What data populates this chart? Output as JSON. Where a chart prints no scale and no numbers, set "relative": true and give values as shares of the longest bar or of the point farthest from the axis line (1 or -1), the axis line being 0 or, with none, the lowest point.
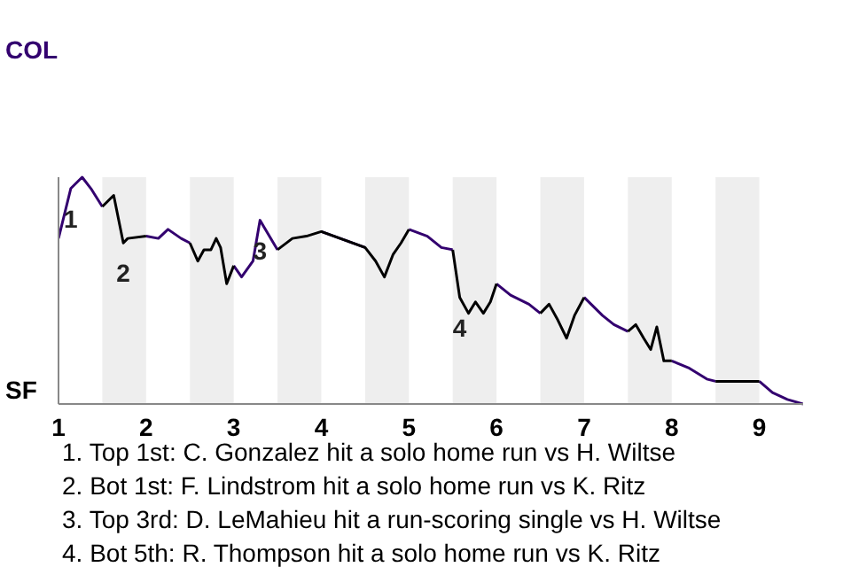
{
  "chart_data": {
    "type": "line",
    "relative": true,
    "xlim": [
      1,
      9.5
    ],
    "xticks": [
      1,
      2,
      3,
      4,
      5,
      6,
      7,
      8,
      9
    ],
    "marker": "none",
    "line_style": "solid",
    "x": [
      1,
      1.14,
      1.27,
      1.37,
      1.5,
      1.63,
      1.74,
      1.79,
      2,
      2.14,
      2.25,
      2.4,
      2.5,
      2.59,
      2.66,
      2.74,
      2.8,
      2.85,
      2.92,
      3,
      3.09,
      3.22,
      3.3,
      3.5,
      3.67,
      3.83,
      4,
      4.5,
      4.62,
      4.72,
      4.82,
      4.91,
      5,
      5.21,
      5.37,
      5.5,
      5.58,
      5.68,
      5.76,
      5.85,
      5.93,
      6,
      6.16,
      6.37,
      6.5,
      6.6,
      6.7,
      6.8,
      6.89,
      7,
      7.21,
      7.34,
      7.5,
      7.59,
      7.68,
      7.76,
      7.83,
      7.91,
      8,
      8.19,
      8.4,
      8.5,
      8.72,
      9,
      9.15,
      9.32,
      9.5
    ],
    "series": [
      {
        "color": "#33006f",
        "values": [
          0.73,
          0.95,
          1,
          0.95,
          0.87,
          null,
          null,
          null,
          0.74,
          0.73,
          0.77,
          0.73,
          0.71,
          null,
          null,
          null,
          null,
          null,
          null,
          0.61,
          0.56,
          0.63,
          0.81,
          0.68,
          null,
          null,
          0.76,
          0.69,
          null,
          null,
          null,
          null,
          0.77,
          0.74,
          0.69,
          0.68,
          null,
          null,
          null,
          null,
          null,
          0.53,
          0.48,
          0.44,
          0.4,
          null,
          null,
          null,
          null,
          0.47,
          0.39,
          0.35,
          0.32,
          null,
          null,
          null,
          null,
          null,
          0.19,
          0.16,
          0.11,
          0.1,
          null,
          0.1,
          0.05,
          0.02,
          0
        ]
      },
      {
        "color": "#000000",
        "values": [
          null,
          null,
          null,
          null,
          0.87,
          0.92,
          0.71,
          0.73,
          0.74,
          null,
          null,
          null,
          0.71,
          0.63,
          0.68,
          0.68,
          0.73,
          0.69,
          0.53,
          0.61,
          null,
          null,
          null,
          0.68,
          0.73,
          0.74,
          0.76,
          0.69,
          0.63,
          0.56,
          0.66,
          0.71,
          0.77,
          null,
          null,
          0.68,
          0.47,
          0.4,
          0.45,
          0.4,
          0.45,
          0.53,
          null,
          null,
          0.4,
          0.44,
          0.37,
          0.29,
          0.39,
          0.47,
          null,
          null,
          0.32,
          0.35,
          0.29,
          0.24,
          0.34,
          0.19,
          0.19,
          null,
          null,
          0.1,
          0.1,
          0.1,
          null,
          null,
          null
        ]
      }
    ],
    "bands": [
      {
        "axis": "x",
        "from": 1.5,
        "to": 2,
        "color": "#eeeeee"
      },
      {
        "axis": "x",
        "from": 2.5,
        "to": 3,
        "color": "#eeeeee"
      },
      {
        "axis": "x",
        "from": 3.5,
        "to": 4,
        "color": "#eeeeee"
      },
      {
        "axis": "x",
        "from": 4.5,
        "to": 5,
        "color": "#eeeeee"
      },
      {
        "axis": "x",
        "from": 5.5,
        "to": 6,
        "color": "#eeeeee"
      },
      {
        "axis": "x",
        "from": 6.5,
        "to": 7,
        "color": "#eeeeee"
      },
      {
        "axis": "x",
        "from": 7.5,
        "to": 8,
        "color": "#eeeeee"
      },
      {
        "axis": "x",
        "from": 8.5,
        "to": 9,
        "color": "#eeeeee"
      }
    ],
    "annotations": [
      "COL",
      "SF",
      {
        "text": "1",
        "x": 1.14,
        "y": 0.95
      },
      {
        "text": "2",
        "x": 1.74,
        "y": 0.71
      },
      {
        "text": "3",
        "x": 3.3,
        "y": 0.81
      },
      {
        "text": "4",
        "x": 5.58,
        "y": 0.47
      },
      "1. Top 1st: C. Gonzalez hit a solo home run vs H. Wiltse",
      "2. Bot 1st: F. Lindstrom hit a solo home run vs K. Ritz",
      "3. Top 3rd: D. LeMahieu hit a run-scoring single vs H. Wiltse",
      "4. Bot 5th: R. Thompson hit a solo home run vs K. Ritz"
    ]
  }
}
